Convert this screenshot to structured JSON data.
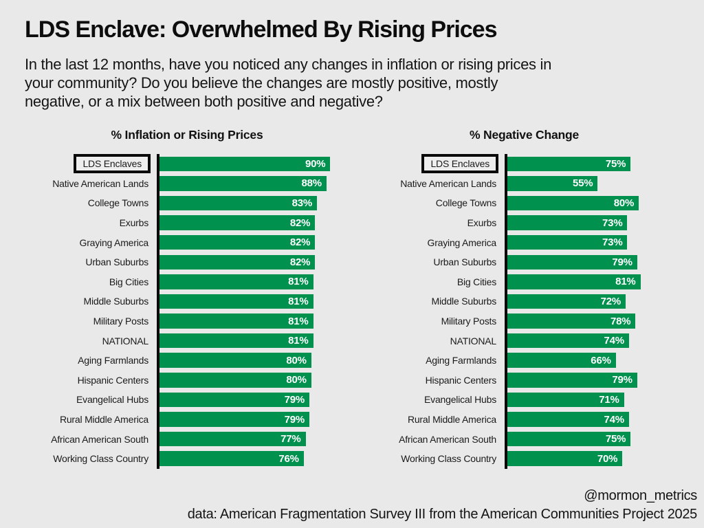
{
  "page": {
    "title": "LDS Enclave: Overwhelmed By Rising Prices",
    "subtitle_lines": [
      "In the last 12 months, have you noticed any changes in inflation or rising prices in",
      "your community? Do you believe the changes are mostly positive, mostly",
      "negative, or a mix between both positive and negative?"
    ],
    "footer_handle": "@mormon_metrics",
    "footer_source": "data: American Fragmentation Survey III from the American Communities Project 2025"
  },
  "colors": {
    "background": "#e9e9e9",
    "bar": "#00914e",
    "axis": "#0a0a0a",
    "bar_value_text": "#ffffff",
    "highlight_box_border": "#0a0a0a",
    "text": "#111111"
  },
  "chart_data": {
    "type": "bar",
    "orientation": "horizontal",
    "grid": false,
    "xlim": [
      0,
      100
    ],
    "value_suffix": "%",
    "highlight_category": "LDS Enclaves",
    "categories": [
      "LDS Enclaves",
      "Native American Lands",
      "College Towns",
      "Exurbs",
      "Graying America",
      "Urban Suburbs",
      "Big Cities",
      "Middle Suburbs",
      "Military Posts",
      "NATIONAL",
      "Aging Farmlands",
      "Hispanic Centers",
      "Evangelical Hubs",
      "Rural Middle America",
      "African American South",
      "Working Class Country"
    ],
    "series": [
      {
        "name": "% Inflation or Rising Prices",
        "values": [
          90,
          88,
          83,
          82,
          82,
          82,
          81,
          81,
          81,
          81,
          80,
          80,
          79,
          79,
          77,
          76
        ]
      },
      {
        "name": "% Negative Change",
        "values": [
          75,
          55,
          80,
          73,
          73,
          79,
          81,
          72,
          78,
          74,
          66,
          79,
          71,
          74,
          75,
          70
        ]
      }
    ]
  }
}
